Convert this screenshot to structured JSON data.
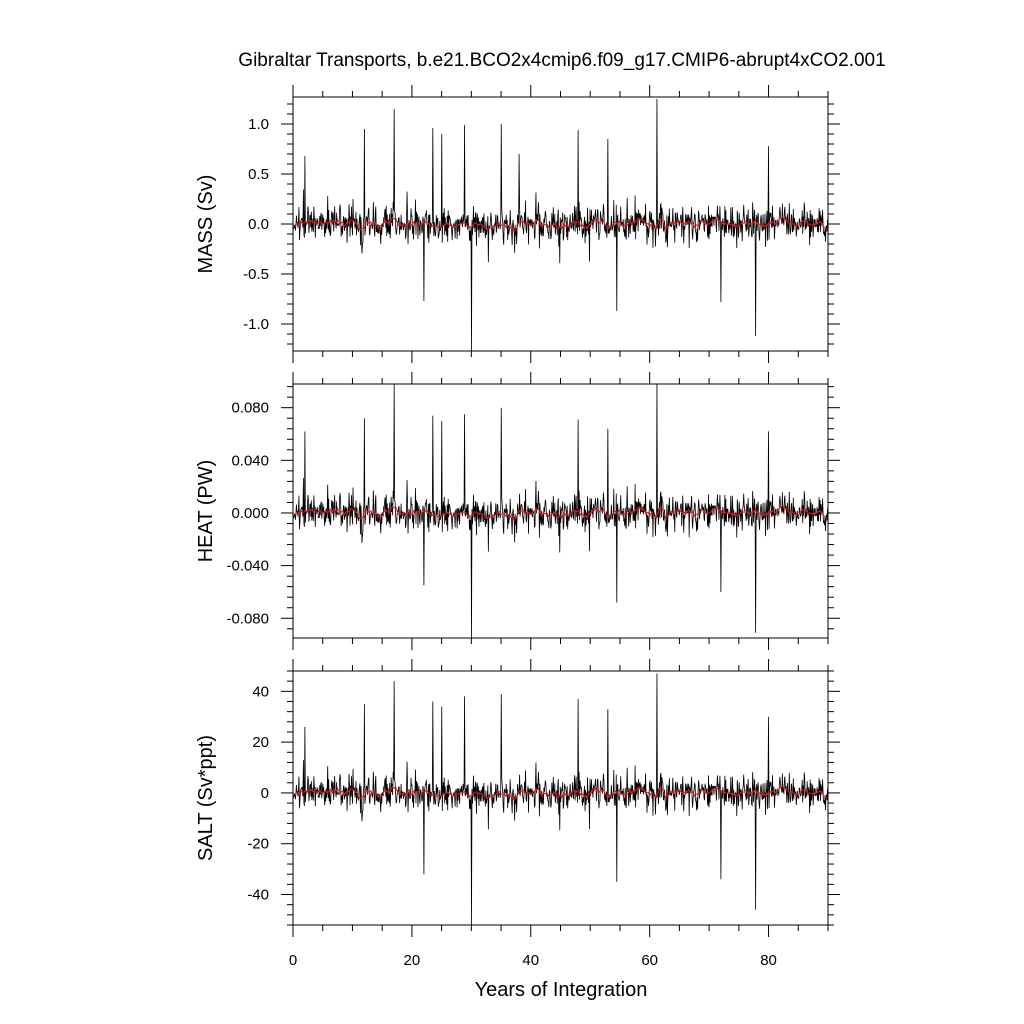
{
  "chart_data": {
    "type": "line",
    "title": "Gibraltar Transports, b.e21.BCO2x4cmip6.f09_g17.CMIP6-abrupt4xCO2.001",
    "xlabel": "Years of Integration",
    "xlim": [
      0,
      90
    ],
    "xticks": [
      0,
      20,
      40,
      60,
      80
    ],
    "xtick_labels": [
      "0",
      "20",
      "40",
      "60",
      "80"
    ],
    "grid": false,
    "colors": {
      "raw": "#000000",
      "running_mean": "#e0191b"
    },
    "series_description_note": "",
    "panels": [
      {
        "name": "mass",
        "ylabel": "MASS (Sv)",
        "ylim": [
          -1.27,
          1.27
        ],
        "yticks": [
          1.0,
          0.5,
          0.0,
          -0.5,
          -1.0
        ],
        "ytick_labels": [
          "1.0",
          "0.5",
          "0.0",
          "-0.5",
          "-1.0"
        ],
        "extremes": [
          {
            "x": 2.0,
            "y": 0.68
          },
          {
            "x": 12.0,
            "y": 0.95
          },
          {
            "x": 17.0,
            "y": 1.15
          },
          {
            "x": 22.0,
            "y": -0.77
          },
          {
            "x": 23.5,
            "y": 0.96
          },
          {
            "x": 25.0,
            "y": 0.9
          },
          {
            "x": 28.9,
            "y": 0.99
          },
          {
            "x": 30.0,
            "y": -1.27
          },
          {
            "x": 35.0,
            "y": 1.0
          },
          {
            "x": 38.0,
            "y": 0.7
          },
          {
            "x": 48.0,
            "y": 0.94
          },
          {
            "x": 53.0,
            "y": 0.85
          },
          {
            "x": 54.5,
            "y": -0.87
          },
          {
            "x": 61.2,
            "y": 1.25
          },
          {
            "x": 72.0,
            "y": -0.78
          },
          {
            "x": 77.8,
            "y": -1.12
          },
          {
            "x": 80.0,
            "y": 0.78
          }
        ]
      },
      {
        "name": "heat",
        "ylabel": "HEAT (PW)",
        "ylim": [
          -0.095,
          0.098
        ],
        "yticks": [
          0.08,
          0.04,
          0.0,
          -0.04,
          -0.08
        ],
        "ytick_labels": [
          "0.080",
          "0.040",
          "0.000",
          "-0.040",
          "-0.080"
        ],
        "extremes": [
          {
            "x": 2.0,
            "y": 0.062
          },
          {
            "x": 12.0,
            "y": 0.072
          },
          {
            "x": 17.0,
            "y": 0.098
          },
          {
            "x": 22.0,
            "y": -0.055
          },
          {
            "x": 23.5,
            "y": 0.074
          },
          {
            "x": 25.0,
            "y": 0.07
          },
          {
            "x": 28.9,
            "y": 0.075
          },
          {
            "x": 30.0,
            "y": -0.095
          },
          {
            "x": 35.0,
            "y": 0.08
          },
          {
            "x": 48.0,
            "y": 0.071
          },
          {
            "x": 53.0,
            "y": 0.064
          },
          {
            "x": 54.5,
            "y": -0.068
          },
          {
            "x": 61.2,
            "y": 0.098
          },
          {
            "x": 72.0,
            "y": -0.06
          },
          {
            "x": 77.8,
            "y": -0.091
          },
          {
            "x": 80.0,
            "y": 0.062
          }
        ]
      },
      {
        "name": "salt",
        "ylabel": "SALT (Sv*ppt)",
        "ylim": [
          -52,
          48
        ],
        "yticks": [
          40,
          20,
          0,
          -20,
          -40
        ],
        "ytick_labels": [
          "40",
          "20",
          "0",
          "-20",
          "-40"
        ],
        "extremes": [
          {
            "x": 2.0,
            "y": 26
          },
          {
            "x": 12.0,
            "y": 35
          },
          {
            "x": 17.0,
            "y": 44
          },
          {
            "x": 22.0,
            "y": -32
          },
          {
            "x": 23.5,
            "y": 36
          },
          {
            "x": 25.0,
            "y": 34
          },
          {
            "x": 28.9,
            "y": 38
          },
          {
            "x": 30.0,
            "y": -52
          },
          {
            "x": 35.0,
            "y": 39
          },
          {
            "x": 48.0,
            "y": 37
          },
          {
            "x": 53.0,
            "y": 33
          },
          {
            "x": 54.5,
            "y": -35
          },
          {
            "x": 61.2,
            "y": 47
          },
          {
            "x": 72.0,
            "y": -34
          },
          {
            "x": 77.8,
            "y": -46
          },
          {
            "x": 80.0,
            "y": 30
          }
        ]
      }
    ]
  }
}
